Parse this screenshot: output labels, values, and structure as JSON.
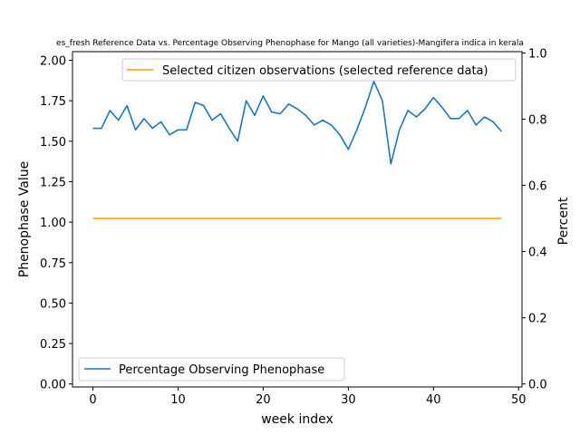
{
  "chart_data": {
    "type": "line",
    "title": "es_fresh Reference Data vs. Percentage Observing Phenophase for Mango (all varieties)-Mangifera indica in kerala",
    "xlabel": "week index",
    "ylabel_left": "Phenophase Value",
    "ylabel_right": "Percent",
    "xlim": [
      -2.4,
      50.4
    ],
    "ylim_left": [
      -0.0185,
      2.0535
    ],
    "ylim_right": [
      -0.0091,
      1.0039
    ],
    "xticks": [
      "0",
      "10",
      "20",
      "30",
      "40",
      "50"
    ],
    "xtick_values": [
      0,
      10,
      20,
      30,
      40,
      50
    ],
    "yticks_left": [
      "0.00",
      "0.25",
      "0.50",
      "0.75",
      "1.00",
      "1.25",
      "1.50",
      "1.75",
      "2.00"
    ],
    "ytick_values_left": [
      0,
      0.25,
      0.5,
      0.75,
      1.0,
      1.25,
      1.5,
      1.75,
      2.0
    ],
    "yticks_right": [
      "0.0",
      "0.2",
      "0.4",
      "0.6",
      "0.8",
      "1.0"
    ],
    "ytick_values_right": [
      0,
      0.2,
      0.4,
      0.6,
      0.8,
      1.0
    ],
    "series": [
      {
        "name": "Percentage Observing Phenophase",
        "axis": "left",
        "color": "#1f77b4",
        "x": [
          0,
          1,
          2,
          3,
          4,
          5,
          6,
          7,
          8,
          9,
          10,
          11,
          12,
          13,
          14,
          15,
          16,
          17,
          18,
          19,
          20,
          21,
          22,
          23,
          24,
          25,
          26,
          27,
          28,
          29,
          30,
          31,
          32,
          33,
          34,
          35,
          36,
          37,
          38,
          39,
          40,
          41,
          42,
          43,
          44,
          45,
          46,
          47,
          48
        ],
        "values": [
          1.58,
          1.58,
          1.69,
          1.63,
          1.72,
          1.57,
          1.64,
          1.58,
          1.62,
          1.54,
          1.57,
          1.57,
          1.74,
          1.72,
          1.63,
          1.67,
          1.58,
          1.5,
          1.75,
          1.66,
          1.78,
          1.68,
          1.67,
          1.73,
          1.7,
          1.66,
          1.6,
          1.63,
          1.6,
          1.54,
          1.45,
          1.57,
          1.71,
          1.87,
          1.75,
          1.36,
          1.57,
          1.69,
          1.65,
          1.7,
          1.77,
          1.71,
          1.64,
          1.64,
          1.69,
          1.6,
          1.65,
          1.62,
          1.56
        ]
      },
      {
        "name": "Selected citizen observations (selected reference data)",
        "axis": "right",
        "color": "#ff9f00",
        "x": [
          0,
          48
        ],
        "values": [
          0.5,
          0.5
        ]
      }
    ],
    "legends": [
      {
        "position": "upper-right",
        "entries": [
          "Selected citizen observations (selected reference data)"
        ]
      },
      {
        "position": "lower-left",
        "entries": [
          "Percentage Observing Phenophase"
        ]
      }
    ]
  }
}
